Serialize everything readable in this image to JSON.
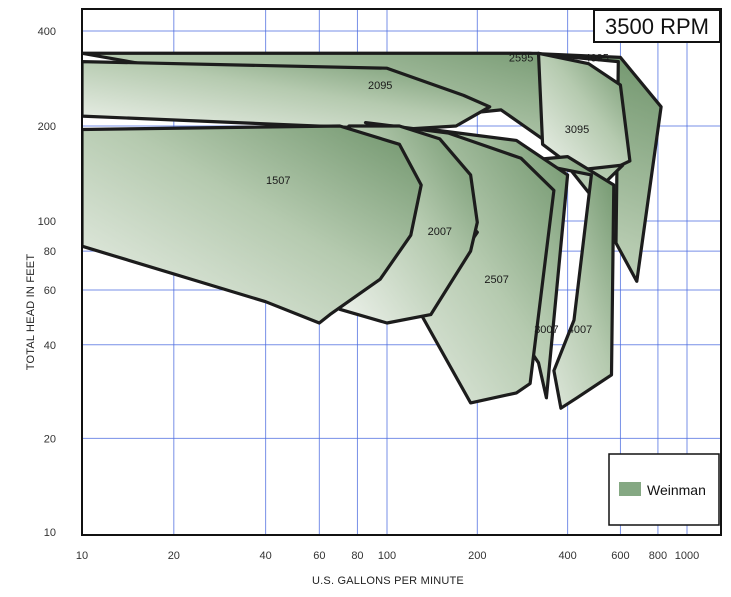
{
  "chart_data": {
    "type": "area",
    "badge": "3500 RPM",
    "xlabel": "U.S. GALLONS PER MINUTE",
    "ylabel": "TOTAL HEAD IN FEET",
    "x_scale": "log",
    "y_scale": "log",
    "xlim": [
      10,
      1400
    ],
    "ylim": [
      10,
      420
    ],
    "x_ticks": [
      10,
      20,
      40,
      60,
      80,
      100,
      200,
      400,
      600,
      800,
      1000
    ],
    "x_tick_labels": [
      "10",
      "20",
      "40",
      "60",
      "80",
      "100",
      "200",
      "400",
      "600",
      "800",
      "1000"
    ],
    "y_ticks": [
      10,
      20,
      40,
      60,
      80,
      100,
      200,
      400
    ],
    "y_tick_labels": [
      "10",
      "20",
      "40",
      "60",
      "80",
      "100",
      "200",
      "400"
    ],
    "grid": true,
    "legend": {
      "placement": "bottom-right",
      "entries": [
        {
          "label": "Weinman",
          "color": "#85a883"
        }
      ]
    },
    "colors": {
      "fill_light": "#e9efe7",
      "fill_dark": "#7fa07c",
      "outline": "#1c1c1c",
      "grid": "#4a6ae0"
    },
    "series": [
      {
        "name": "4095",
        "label_at": [
          500,
          330
        ],
        "outline": [
          [
            10,
            340
          ],
          [
            300,
            340
          ],
          [
            600,
            330
          ],
          [
            820,
            230
          ],
          [
            680,
            64
          ],
          [
            580,
            85
          ],
          [
            590,
            320
          ],
          [
            300,
            340
          ],
          [
            10,
            340
          ]
        ]
      },
      {
        "name": "2595",
        "label_at": [
          280,
          330
        ],
        "outline": [
          [
            10,
            340
          ],
          [
            320,
            340
          ],
          [
            430,
            305
          ],
          [
            550,
            250
          ],
          [
            610,
            150
          ],
          [
            480,
            120
          ],
          [
            350,
            175
          ],
          [
            240,
            225
          ],
          [
            150,
            215
          ],
          [
            10,
            340
          ]
        ]
      },
      {
        "name": "3095",
        "label_at": [
          430,
          196
        ],
        "outline": [
          [
            320,
            340
          ],
          [
            470,
            315
          ],
          [
            600,
            270
          ],
          [
            645,
            155
          ],
          [
            600,
            150
          ],
          [
            430,
            145
          ],
          [
            330,
            175
          ],
          [
            320,
            340
          ]
        ]
      },
      {
        "name": "2095",
        "label_at": [
          95,
          270
        ],
        "outline": [
          [
            10,
            320
          ],
          [
            100,
            305
          ],
          [
            180,
            250
          ],
          [
            220,
            230
          ],
          [
            170,
            200
          ],
          [
            110,
            195
          ],
          [
            10,
            215
          ],
          [
            10,
            320
          ]
        ]
      },
      {
        "name": "4007",
        "label_at": [
          440,
          45
        ],
        "outline": [
          [
            280,
            155
          ],
          [
            400,
            160
          ],
          [
            570,
            130
          ],
          [
            560,
            32
          ],
          [
            430,
            27
          ],
          [
            380,
            25
          ],
          [
            360,
            33
          ],
          [
            420,
            48
          ],
          [
            480,
            140
          ],
          [
            280,
            155
          ]
        ]
      },
      {
        "name": "3007",
        "label_at": [
          340,
          45
        ],
        "outline": [
          [
            140,
            195
          ],
          [
            270,
            180
          ],
          [
            400,
            140
          ],
          [
            340,
            27
          ],
          [
            320,
            35
          ],
          [
            220,
            60
          ],
          [
            150,
            190
          ],
          [
            140,
            195
          ]
        ]
      },
      {
        "name": "2507",
        "label_at": [
          232,
          65
        ],
        "outline": [
          [
            85,
            205
          ],
          [
            160,
            190
          ],
          [
            280,
            158
          ],
          [
            360,
            125
          ],
          [
            300,
            30
          ],
          [
            270,
            28
          ],
          [
            190,
            26
          ],
          [
            130,
            50
          ],
          [
            200,
            92
          ],
          [
            90,
            200
          ],
          [
            85,
            205
          ]
        ]
      },
      {
        "name": "2007",
        "label_at": [
          150,
          93
        ],
        "outline": [
          [
            75,
            200
          ],
          [
            110,
            200
          ],
          [
            150,
            182
          ],
          [
            190,
            140
          ],
          [
            200,
            99
          ],
          [
            190,
            80
          ],
          [
            140,
            50
          ],
          [
            100,
            47
          ],
          [
            70,
            52
          ],
          [
            85,
            120
          ],
          [
            75,
            200
          ]
        ]
      },
      {
        "name": "1507",
        "label_at": [
          44,
          135
        ],
        "outline": [
          [
            10,
            195
          ],
          [
            70,
            200
          ],
          [
            110,
            175
          ],
          [
            130,
            130
          ],
          [
            120,
            90
          ],
          [
            95,
            65
          ],
          [
            65,
            50
          ],
          [
            60,
            47
          ],
          [
            40,
            55
          ],
          [
            10,
            83
          ],
          [
            10,
            195
          ]
        ]
      }
    ]
  }
}
